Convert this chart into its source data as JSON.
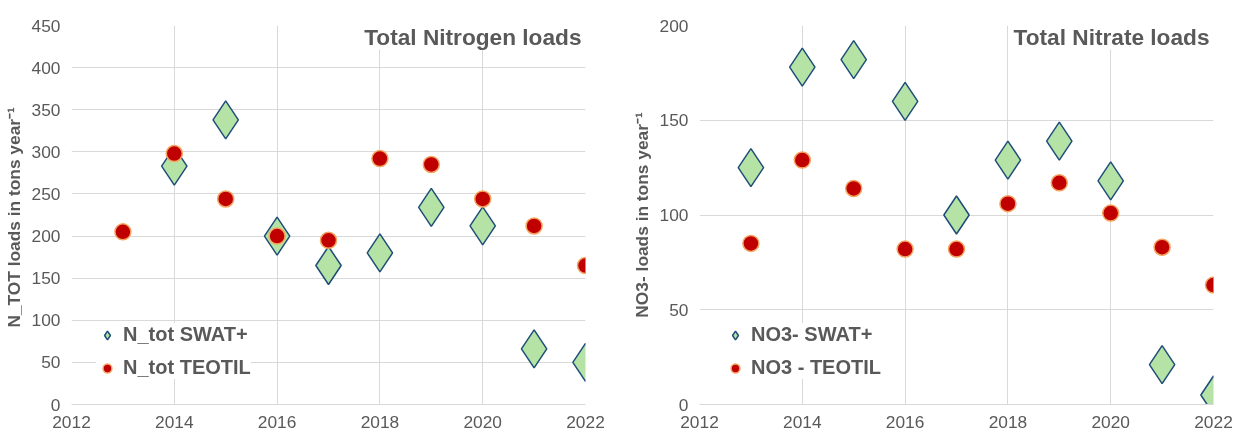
{
  "chart_data": [
    {
      "type": "scatter",
      "title": "Total Nitrogen loads",
      "ylabel": "N_TOT  loads in tons year⁻¹",
      "xlim": [
        2012,
        2022
      ],
      "xticks": [
        2012,
        2014,
        2016,
        2018,
        2020,
        2022
      ],
      "ylim": [
        0,
        450
      ],
      "yticks": [
        0,
        50,
        100,
        150,
        200,
        250,
        300,
        350,
        400,
        450
      ],
      "grid": true,
      "legend": "bottom left",
      "series": [
        {
          "name": "N_tot SWAT+",
          "color": "#b5e3a6",
          "marker": "diamond",
          "x": [
            2014,
            2015,
            2016,
            2017,
            2018,
            2019,
            2020,
            2021,
            2022
          ],
          "values": [
            283,
            338,
            200,
            165,
            180,
            234,
            212,
            66,
            50
          ]
        },
        {
          "name": "N_tot TEOTIL",
          "color": "#c00000",
          "marker": "circle",
          "x": [
            2013,
            2014,
            2015,
            2016,
            2017,
            2018,
            2019,
            2020,
            2021,
            2022
          ],
          "values": [
            205,
            298,
            244,
            200,
            195,
            292,
            285,
            244,
            212,
            165
          ]
        }
      ]
    },
    {
      "type": "scatter",
      "title": "Total Nitrate loads",
      "ylabel": "NO3- loads in tons year⁻¹",
      "xlim": [
        2012,
        2022
      ],
      "xticks": [
        2012,
        2014,
        2016,
        2018,
        2020,
        2022
      ],
      "ylim": [
        0,
        200
      ],
      "yticks": [
        0,
        50,
        100,
        150,
        200
      ],
      "grid": true,
      "legend": "bottom left",
      "series": [
        {
          "name": "NO3- SWAT+",
          "color": "#b5e3a6",
          "marker": "diamond",
          "x": [
            2013,
            2014,
            2015,
            2016,
            2017,
            2018,
            2019,
            2020,
            2021,
            2022
          ],
          "values": [
            125,
            178,
            182,
            160,
            100,
            129,
            139,
            118,
            21,
            5
          ]
        },
        {
          "name": "NO3 - TEOTIL",
          "color": "#c00000",
          "marker": "circle",
          "x": [
            2013,
            2014,
            2015,
            2016,
            2017,
            2018,
            2019,
            2020,
            2021,
            2022
          ],
          "values": [
            85,
            129,
            114,
            82,
            82,
            106,
            117,
            101,
            83,
            63
          ]
        }
      ]
    }
  ]
}
